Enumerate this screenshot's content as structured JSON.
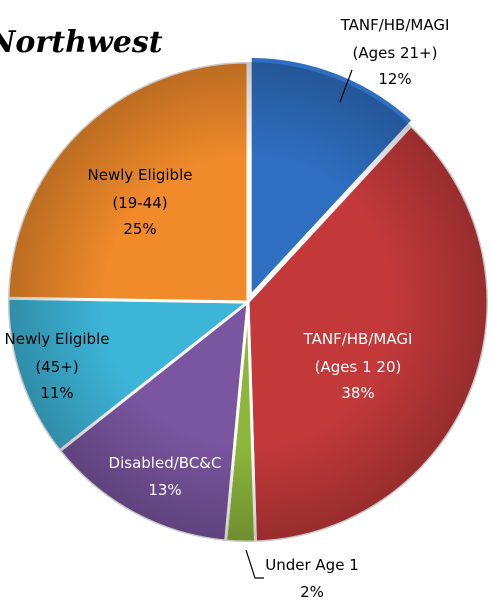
{
  "chart_data": {
    "type": "pie",
    "title": "Northwest",
    "categories": [
      "TANF/HB/MAGI (Ages 21+)",
      "TANF/HB/MAGI (Ages 1 20)",
      "Under Age 1",
      "Disabled/BC&C",
      "Newly Eligible (45+)",
      "Newly Eligible (19-44)"
    ],
    "values": [
      12,
      38,
      2,
      13,
      11,
      25
    ],
    "value_labels": [
      "12%",
      "38%",
      "2%",
      "13%",
      "11%",
      "25%"
    ],
    "colors": [
      "#2f6fc2",
      "#c3393a",
      "#8db63c",
      "#7a55a0",
      "#3db5d8",
      "#f08a2a"
    ]
  }
}
